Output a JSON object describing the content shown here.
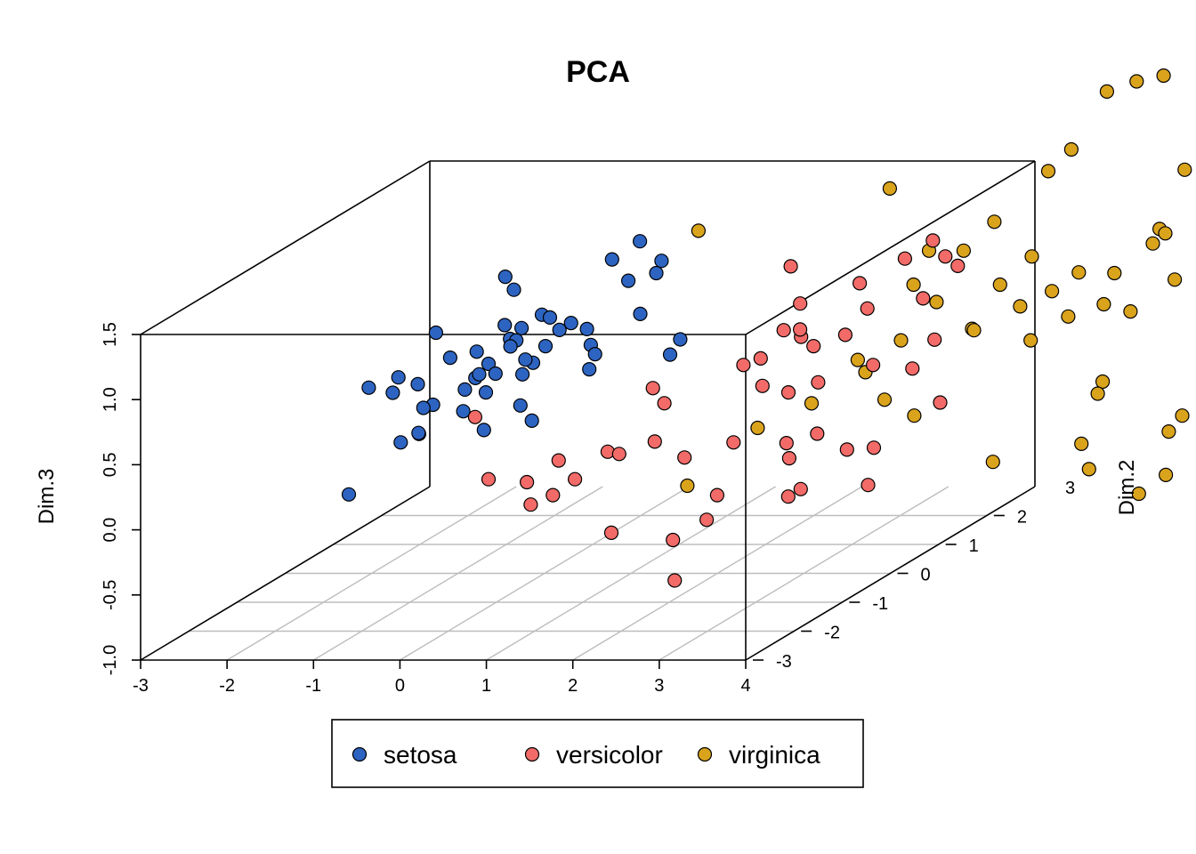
{
  "chart_data": {
    "type": "scatter3d",
    "title": "PCA",
    "xlabel": "",
    "ylabel": "Dim.2",
    "zlabel": "Dim.3",
    "xlim": [
      -3,
      4
    ],
    "ylim": [
      -3,
      3
    ],
    "zlim": [
      -1.0,
      1.5
    ],
    "x_ticks": [
      "-3",
      "-2",
      "-1",
      "0",
      "1",
      "2",
      "3",
      "4"
    ],
    "y_ticks": [
      "-3",
      "-2",
      "-1",
      "0",
      "1",
      "2",
      "3"
    ],
    "z_ticks": [
      "-1.0",
      "-0.5",
      "0.0",
      "0.5",
      "1.0",
      "1.5"
    ],
    "grid": "floor",
    "legend_position": "bottom",
    "point_stroke": "#000000",
    "series": [
      {
        "name": "setosa",
        "color": "#2d64c2",
        "points": [
          [
            -1.52,
            -0.92,
            0.63
          ],
          [
            -1.3,
            -0.7,
            0.66
          ],
          [
            -1.32,
            -0.78,
            0.56
          ],
          [
            -1.2,
            -0.1,
            0.87
          ],
          [
            -1.02,
            -0.8,
            0.63
          ],
          [
            -0.98,
            -0.2,
            0.7
          ],
          [
            -0.84,
            0.1,
            0.68
          ],
          [
            -0.9,
            -0.9,
            0.47
          ],
          [
            -0.9,
            -0.7,
            0.45
          ],
          [
            -0.95,
            0.05,
            0.4
          ],
          [
            -0.8,
            0.0,
            0.5
          ],
          [
            -0.7,
            -0.1,
            0.55
          ],
          [
            -0.62,
            -0.05,
            0.62
          ],
          [
            -0.6,
            0.6,
            0.75
          ],
          [
            -0.55,
            0.4,
            0.7
          ],
          [
            -0.45,
            0.1,
            0.72
          ],
          [
            -0.4,
            -0.3,
            0.6
          ],
          [
            -0.3,
            0.3,
            0.55
          ],
          [
            -0.25,
            0.05,
            0.63
          ],
          [
            -0.2,
            -0.1,
            0.55
          ],
          [
            -0.1,
            0.2,
            0.7
          ],
          [
            -0.05,
            0.4,
            0.78
          ],
          [
            0.0,
            0.55,
            0.8
          ],
          [
            -0.3,
            0.65,
            0.82
          ],
          [
            -0.9,
            0.8,
            1.1
          ],
          [
            -0.8,
            0.8,
            1.0
          ],
          [
            0.1,
            0.7,
            0.72
          ],
          [
            0.2,
            0.6,
            0.62
          ],
          [
            0.35,
            0.3,
            0.5
          ],
          [
            0.25,
            0.6,
            0.55
          ],
          [
            0.0,
            1.4,
            1.1
          ],
          [
            0.1,
            1.8,
            1.15
          ],
          [
            0.35,
            1.8,
            1.0
          ],
          [
            0.4,
            1.6,
            0.95
          ],
          [
            0.9,
            1.2,
            0.53
          ],
          [
            0.95,
            0.9,
            0.48
          ],
          [
            -0.6,
            0.25,
            0.85
          ],
          [
            -0.42,
            0.7,
            0.83
          ],
          [
            0.3,
            1.2,
            0.98
          ],
          [
            -1.4,
            -1.55,
            -0.05
          ],
          [
            -0.95,
            -0.9,
            0.27
          ],
          [
            -1.05,
            -1.1,
            0.25
          ],
          [
            -0.9,
            -1.0,
            0.3
          ],
          [
            -0.55,
            -0.7,
            0.4
          ],
          [
            -0.4,
            -0.5,
            0.5
          ],
          [
            0.0,
            -0.5,
            0.4
          ],
          [
            -0.2,
            -0.9,
            0.3
          ],
          [
            0.3,
            -0.8,
            0.35
          ],
          [
            -0.65,
            0.45,
            0.7
          ],
          [
            0.55,
            1.0,
            0.77
          ]
        ]
      },
      {
        "name": "versicolor",
        "color": "#f26b68",
        "points": [
          [
            1.9,
            1.7,
            0.98
          ],
          [
            2.4,
            1.0,
            0.85
          ],
          [
            2.6,
            0.3,
            0.8
          ],
          [
            2.8,
            0.3,
            0.75
          ],
          [
            3.0,
            0.2,
            0.7
          ],
          [
            3.2,
            0.5,
            0.72
          ],
          [
            3.4,
            0.6,
            0.9
          ],
          [
            3.6,
            1.6,
            1.2
          ],
          [
            3.8,
            1.5,
            1.1
          ],
          [
            4.0,
            1.4,
            1.05
          ],
          [
            1.7,
            -0.8,
            0.6
          ],
          [
            2.0,
            -1.1,
            0.55
          ],
          [
            2.3,
            0.0,
            0.6
          ],
          [
            2.5,
            0.0,
            0.65
          ],
          [
            2.8,
            -0.5,
            0.55
          ],
          [
            3.1,
            -0.5,
            0.5
          ],
          [
            3.5,
            -0.6,
            0.6
          ],
          [
            3.8,
            0.0,
            0.6
          ],
          [
            4.2,
            0.1,
            0.55
          ],
          [
            4.4,
            0.2,
            0.75
          ],
          [
            2.9,
            0.1,
            0.85
          ],
          [
            3.2,
            0.8,
            1.05
          ],
          [
            3.5,
            1.2,
            1.15
          ],
          [
            4.1,
            0.5,
            1.0
          ],
          [
            0.3,
            -1.7,
            0.1
          ],
          [
            0.8,
            -1.8,
            0.1
          ],
          [
            1.0,
            -1.5,
            0.2
          ],
          [
            1.4,
            -1.2,
            0.2
          ],
          [
            1.7,
            -1.5,
            0.25
          ],
          [
            2.0,
            -1.3,
            0.3
          ],
          [
            2.4,
            -1.4,
            0.2
          ],
          [
            2.8,
            -1.1,
            0.25
          ],
          [
            3.3,
            -0.9,
            0.2
          ],
          [
            3.6,
            -0.8,
            0.25
          ],
          [
            4.0,
            -0.9,
            0.15
          ],
          [
            4.2,
            -0.7,
            0.12
          ],
          [
            4.8,
            -0.4,
            0.4
          ],
          [
            0.9,
            -1.9,
            -0.05
          ],
          [
            1.1,
            -1.8,
            0.0
          ],
          [
            1.3,
            -1.7,
            0.1
          ],
          [
            2.6,
            -1.3,
            -0.3
          ],
          [
            3.6,
            -1.4,
            -0.1
          ],
          [
            4.3,
            -1.0,
            -0.1
          ],
          [
            2.9,
            -2.5,
            -0.5
          ],
          [
            2.0,
            -2.2,
            -0.2
          ],
          [
            0.2,
            -1.8,
            0.6
          ],
          [
            2.6,
            -2.0,
            -0.3
          ],
          [
            3.0,
            -1.8,
            0.0
          ],
          [
            3.5,
            -1.2,
            0.15
          ],
          [
            3.8,
            -1.5,
            -0.02
          ]
        ]
      },
      {
        "name": "virginica",
        "color": "#daa31c",
        "points": [
          [
            1.0,
            1.4,
            1.32
          ],
          [
            2.6,
            2.5,
            1.4
          ],
          [
            3.5,
            1.7,
            1.1
          ],
          [
            3.6,
            1.2,
            0.95
          ],
          [
            4.2,
            1.8,
            1.3
          ],
          [
            4.6,
            2.2,
            1.6
          ],
          [
            5.0,
            2.7,
            2.1
          ],
          [
            5.4,
            2.6,
            2.2
          ],
          [
            5.6,
            2.8,
            2.2
          ],
          [
            5.9,
            2.7,
            1.5
          ],
          [
            6.4,
            2.3,
            1.1
          ],
          [
            6.0,
            2.0,
            1.2
          ],
          [
            5.7,
            1.6,
            0.95
          ],
          [
            5.2,
            1.2,
            0.9
          ],
          [
            5.5,
            1.0,
            0.75
          ],
          [
            5.8,
            1.2,
            0.8
          ],
          [
            6.2,
            1.5,
            1.2
          ],
          [
            6.5,
            0.5,
            0.9
          ],
          [
            7.4,
            1.0,
            1.4
          ],
          [
            8.0,
            1.0,
            1.0
          ],
          [
            7.5,
            1.0,
            0.7
          ],
          [
            4.2,
            0.6,
            0.95
          ],
          [
            4.8,
            0.3,
            0.8
          ],
          [
            3.9,
            0.4,
            0.7
          ],
          [
            3.4,
            0.4,
            0.55
          ],
          [
            3.6,
            0.2,
            0.5
          ],
          [
            4.1,
            -0.3,
            0.4
          ],
          [
            4.5,
            -0.4,
            0.3
          ],
          [
            3.2,
            -0.2,
            0.35
          ],
          [
            2.8,
            -0.6,
            0.25
          ],
          [
            6.4,
            0.1,
            0.45
          ],
          [
            6.4,
            0.0,
            0.38
          ],
          [
            6.6,
            -0.7,
            0.15
          ],
          [
            6.8,
            -0.9,
            0.0
          ],
          [
            7.5,
            -0.5,
            0.2
          ],
          [
            7.6,
            -0.4,
            0.3
          ],
          [
            7.6,
            -1.3,
            -0.1
          ],
          [
            7.8,
            -1.1,
            0.0
          ],
          [
            5.8,
            -1.1,
            0.1
          ],
          [
            2.6,
            -1.7,
            0.05
          ],
          [
            4.5,
            0.8,
            0.7
          ],
          [
            5.4,
            1.4,
            1.0
          ],
          [
            6.4,
            1.4,
            1.3
          ],
          [
            3.9,
            1.7,
            1.1
          ],
          [
            4.6,
            1.2,
            0.95
          ],
          [
            5.0,
            0.9,
            0.85
          ],
          [
            5.4,
            0.4,
            0.7
          ],
          [
            4.8,
            1.5,
            1.1
          ],
          [
            6.9,
            0.7,
            1.1
          ],
          [
            4.7,
            2.5,
            1.7
          ]
        ]
      }
    ]
  }
}
